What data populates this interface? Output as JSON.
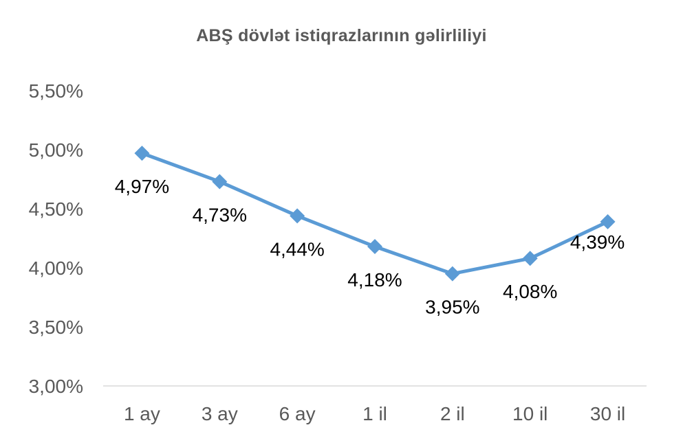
{
  "chart_data": {
    "type": "line",
    "title": "ABŞ dövlət istiqrazlarının gəlirliliyi",
    "xlabel": "",
    "ylabel": "",
    "categories": [
      "1 ay",
      "3 ay",
      "6 ay",
      "1 il",
      "2 il",
      "10 il",
      "30 il"
    ],
    "series": [
      {
        "values": [
          4.97,
          4.73,
          4.44,
          4.18,
          3.95,
          4.08,
          4.39
        ],
        "data_labels": [
          "4,97%",
          "4,73%",
          "4,44%",
          "4,18%",
          "3,95%",
          "4,08%",
          "4,39%"
        ],
        "color": "#5B9BD5",
        "marker": "diamond"
      }
    ],
    "ylim": [
      3.0,
      5.5
    ],
    "y_ticks": [
      3.0,
      3.5,
      4.0,
      4.5,
      5.0,
      5.5
    ],
    "y_tick_labels": [
      "3,00%",
      "3,50%",
      "4,00%",
      "4,50%",
      "5,00%",
      "5,50%"
    ],
    "grid": false,
    "legend": "none"
  }
}
